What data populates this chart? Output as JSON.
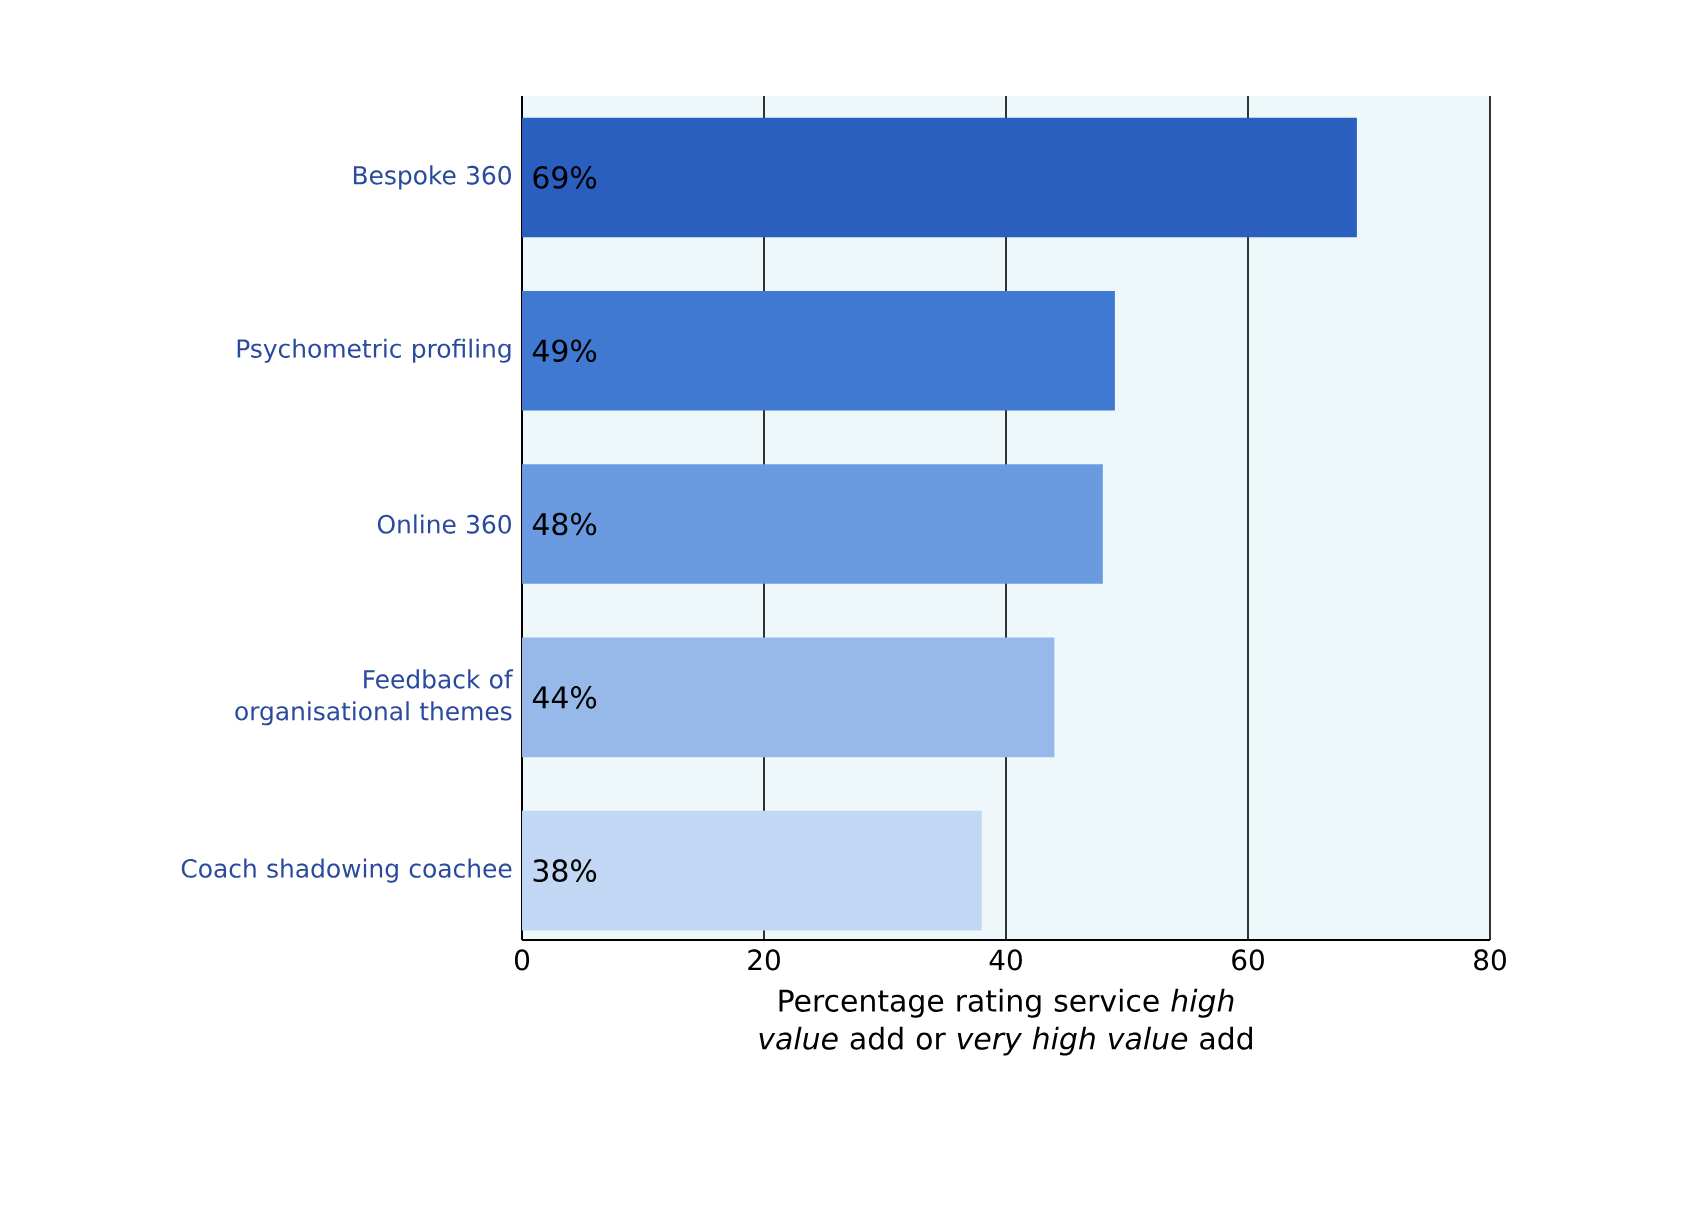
{
  "chart_data": {
    "type": "bar",
    "orientation": "horizontal",
    "categories": [
      "Bespoke 360",
      "Psychometric profiling",
      "Online 360",
      "Feedback of organisational themes",
      "Coach shadowing coachee"
    ],
    "values": [
      69,
      49,
      48,
      44,
      38
    ],
    "value_labels": [
      "69%",
      "49%",
      "48%",
      "44%",
      "38%"
    ],
    "colors": [
      "#2a5fbf",
      "#4079d1",
      "#6a9be0",
      "#96b9ea",
      "#c2d7f3"
    ],
    "xlim": [
      0,
      80
    ],
    "xticks": [
      0,
      20,
      40,
      60,
      80
    ],
    "xlabel": "Percentage rating service *high value* add or *very high value* add",
    "grid": "x"
  }
}
